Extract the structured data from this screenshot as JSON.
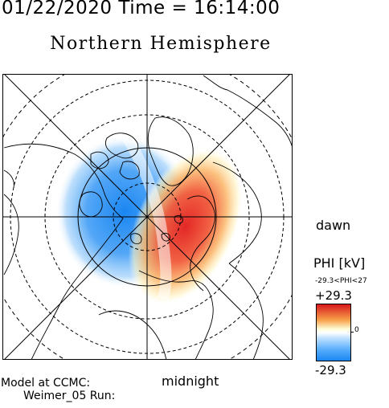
{
  "header": {
    "timestamp": "01/22/2020 Time = 16:14:00",
    "hemisphere": "Northern Hemisphere"
  },
  "map": {
    "projection": "polar-stereographic",
    "pole": "north",
    "grid": "latitude circles and meridians",
    "positive_cell_color": "#e32726",
    "negative_cell_color": "#1a86f2"
  },
  "labels": {
    "dawn": "dawn",
    "midnight": "midnight",
    "model_line1": "Model at CCMC:",
    "model_line2": "Weimer_05 Run:"
  },
  "colorbar": {
    "title": "PHI [kV]",
    "range_text": "-29.3<PHI<27",
    "max_label": "+29.3",
    "zero_label": "0",
    "min_label": "-29.3",
    "high_color": "#d7191c",
    "low_color": "#1a86f2"
  }
}
